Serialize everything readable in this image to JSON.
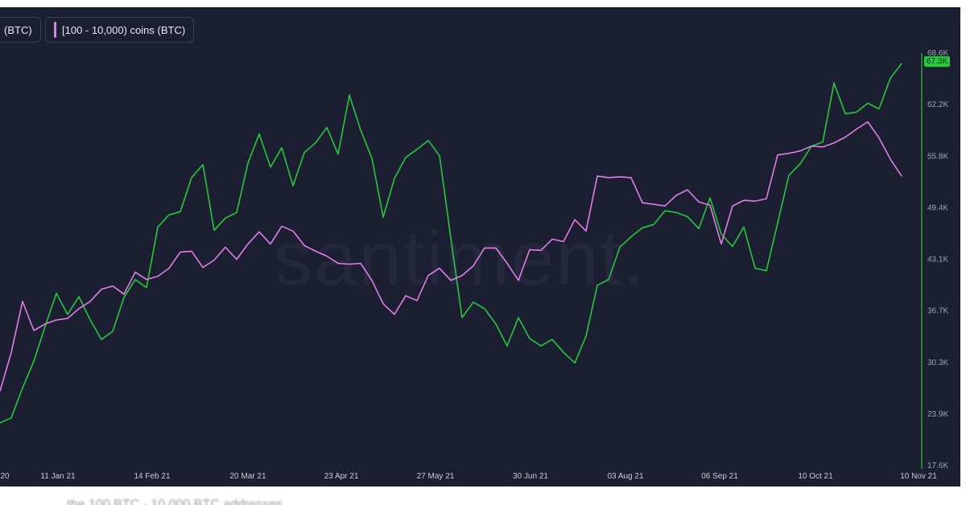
{
  "legend": {
    "btc_label": "(BTC)",
    "whale_label": "[100 - 10,000) coins (BTC)"
  },
  "watermark": "santiment.",
  "price_badge": "67.3K",
  "caption_fragment": "...the 100 BTC - 10,000 BTC addresses...",
  "colors": {
    "background": "#1c1e31",
    "btc_price": "#22c93a",
    "whale_holdings": "#e07ee6",
    "axis_text": "#9ea3b8"
  },
  "chart_data": {
    "type": "line",
    "y_axis": {
      "ticks": [
        "68.6K",
        "62.2K",
        "55.8K",
        "49.4K",
        "43.1K",
        "36.7K",
        "30.3K",
        "23.9K",
        "17.6K"
      ],
      "ylim": [
        17.6,
        68.6
      ],
      "unit": "K"
    },
    "x_axis": {
      "ticks": [
        "20",
        "11 Jan 21",
        "14 Feb 21",
        "20 Mar 21",
        "23 Apr 21",
        "27 May 21",
        "30 Jun 21",
        "03 Aug 21",
        "06 Sep 21",
        "10 Oct 21",
        "10 Nov 21"
      ]
    },
    "series": [
      {
        "name": "(BTC)",
        "color": "#22c93a",
        "x": [
          0,
          4,
          8,
          12,
          16,
          20,
          24,
          28,
          32,
          36,
          40,
          44,
          48,
          52,
          56,
          60,
          64,
          68,
          72,
          76,
          80,
          84,
          88,
          92,
          96,
          100,
          104,
          108,
          112,
          116,
          120,
          124,
          128,
          132,
          136,
          140,
          144,
          148,
          152,
          156,
          160,
          164,
          168,
          172,
          176,
          180,
          184,
          188,
          192,
          196,
          200,
          204,
          208,
          212,
          216,
          220,
          224,
          228,
          232,
          236,
          240,
          244,
          248,
          252,
          256,
          260,
          264,
          268,
          272,
          276,
          280,
          284,
          288,
          292,
          296,
          300,
          304,
          308,
          312,
          316,
          320
        ],
        "values": [
          22.9,
          23.5,
          27.2,
          30.5,
          34.8,
          38.9,
          36.3,
          38.5,
          35.6,
          33.2,
          34.2,
          38.4,
          40.6,
          39.6,
          47.1,
          48.6,
          49.0,
          53.2,
          54.8,
          46.7,
          48.2,
          48.9,
          55.0,
          58.6,
          54.5,
          56.9,
          52.2,
          56.3,
          57.5,
          59.4,
          56.1,
          63.4,
          59.1,
          55.6,
          48.3,
          53.1,
          55.7,
          56.7,
          57.8,
          55.9,
          45.7,
          35.9,
          37.8,
          37.0,
          35.1,
          32.4,
          35.9,
          33.3,
          32.4,
          33.2,
          31.6,
          30.3,
          33.6,
          39.9,
          40.6,
          44.6,
          45.9,
          47.0,
          47.4,
          49.1,
          48.9,
          48.4,
          46.9,
          50.7,
          46.2,
          44.7,
          47.1,
          42.0,
          41.7,
          47.6,
          53.5,
          54.9,
          57.1,
          57.6,
          64.9,
          61.1,
          61.3,
          62.4,
          61.7,
          65.5,
          67.3
        ]
      },
      {
        "name": "[100 - 10,000) coins (BTC)",
        "color": "#e07ee6",
        "x": [
          0,
          4,
          8,
          12,
          16,
          20,
          24,
          28,
          32,
          36,
          40,
          44,
          48,
          52,
          56,
          60,
          64,
          68,
          72,
          76,
          80,
          84,
          88,
          92,
          96,
          100,
          104,
          108,
          112,
          116,
          120,
          124,
          128,
          132,
          136,
          140,
          144,
          148,
          152,
          156,
          160,
          164,
          168,
          172,
          176,
          180,
          184,
          188,
          192,
          196,
          200,
          204,
          208,
          212,
          216,
          220,
          224,
          228,
          232,
          236,
          240,
          244,
          248,
          252,
          256,
          260,
          264,
          268,
          272,
          276,
          280,
          284,
          288,
          292,
          296,
          300,
          304,
          308,
          312,
          316,
          320
        ],
        "values": [
          26.8,
          31.6,
          37.9,
          34.3,
          35.1,
          35.6,
          35.8,
          37.0,
          37.9,
          39.4,
          39.8,
          38.8,
          41.5,
          40.6,
          41.0,
          42.0,
          44.0,
          44.1,
          42.1,
          43.0,
          44.6,
          43.1,
          45.0,
          46.5,
          45.0,
          47.2,
          46.6,
          44.8,
          44.1,
          43.5,
          42.6,
          42.5,
          42.6,
          40.5,
          37.6,
          36.3,
          38.6,
          38.0,
          41.1,
          42.0,
          40.5,
          41.1,
          42.3,
          44.5,
          44.5,
          42.6,
          40.5,
          44.3,
          44.2,
          45.6,
          45.3,
          48.0,
          46.6,
          53.4,
          53.2,
          53.3,
          53.2,
          50.1,
          49.9,
          49.7,
          51.0,
          51.7,
          50.2,
          49.8,
          45.0,
          49.7,
          50.4,
          50.3,
          50.6,
          56.0,
          56.2,
          56.5,
          57.1,
          57.0,
          57.5,
          58.2,
          59.2,
          60.1,
          58.1,
          55.5,
          53.4
        ]
      }
    ]
  }
}
